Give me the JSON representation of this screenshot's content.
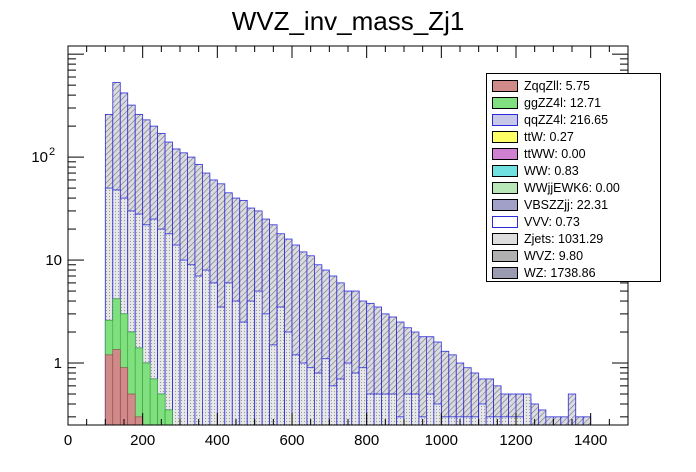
{
  "title": "WVZ_inv_mass_Zj1",
  "chart_data": {
    "type": "bar",
    "style": "stacked-histogram",
    "title": "WVZ_inv_mass_Zj1",
    "xlabel": "",
    "ylabel": "",
    "xlim": [
      0,
      1500
    ],
    "ylim": [
      0.25,
      1200
    ],
    "y_scale": "log",
    "x_ticks": [
      0,
      200,
      400,
      600,
      800,
      1000,
      1200,
      1400
    ],
    "x_tick_labels": [
      "0",
      "200",
      "400",
      "600",
      "800",
      "1000",
      "1200",
      "1400"
    ],
    "y_ticks": [
      1,
      10,
      100
    ],
    "y_tick_labels": [
      "1",
      "10",
      "10^2"
    ],
    "bin_width": 20,
    "bins_start": 100,
    "legend_position": "top-right",
    "series": [
      {
        "name": "ZqqZll",
        "legend": "ZqqZll: 5.75",
        "color": "#d08a8a",
        "values": [
          1.2,
          1.35,
          0.9,
          0.5,
          0.3
        ]
      },
      {
        "name": "ggZZ4l",
        "legend": "ggZZ4l: 12.71",
        "color": "#80e080",
        "values": [
          2.6,
          4.2,
          3.0,
          2.0,
          1.4,
          1.0,
          0.7,
          0.5,
          0.35
        ]
      },
      {
        "name": "qqZZ4l",
        "legend": "qqZZ4l: 216.65",
        "color": "#2b2bd9",
        "values": [
          2.6,
          4.2,
          3.0,
          2.0,
          1.4,
          1.0,
          0.7,
          0.5,
          0.35
        ]
      },
      {
        "name": "ttW",
        "legend": "ttW: 0.27",
        "color": "#ffff66"
      },
      {
        "name": "ttWW",
        "legend": "ttWW: 0.00",
        "color": "#d080d0"
      },
      {
        "name": "WW",
        "legend": "WW: 0.83",
        "color": "#70e0e0"
      },
      {
        "name": "WWjjEWK6",
        "legend": "WWjjEWK6: 0.00",
        "color": "#b8e8b8"
      },
      {
        "name": "VBSZZjj",
        "legend": "VBSZZjj: 22.31",
        "color": "#a0a0c8"
      },
      {
        "name": "VVV",
        "legend": "VVV: 0.73",
        "color": "#ffffff"
      },
      {
        "name": "Zjets",
        "legend": "Zjets: 1031.29",
        "color": "#dddddd",
        "values": [
          50,
          48,
          40,
          30,
          28,
          22,
          25,
          20,
          18,
          14,
          10,
          9,
          7,
          8,
          6,
          3.5,
          6,
          4,
          2.5,
          4,
          5,
          3,
          1.5,
          3.5,
          2,
          1.2,
          1,
          0.9,
          0.8,
          1.1,
          0.6,
          0.7,
          1,
          0.8,
          0.9,
          0.5,
          0.5,
          0.5,
          0.5,
          0.3,
          0.5,
          0.5,
          0.3,
          0.5,
          0.4,
          0.3,
          0.3,
          0.3,
          0.3,
          0.3,
          0.4,
          0.3,
          0.3,
          0.3,
          0.3,
          0.3,
          0.5
        ]
      },
      {
        "name": "WVZ",
        "legend": "WVZ: 9.80",
        "color": "#b0b0b0"
      },
      {
        "name": "WZ",
        "legend": "WZ: 1738.86",
        "color": "#9a9ab0"
      }
    ],
    "total": [
      260,
      530,
      420,
      320,
      260,
      230,
      200,
      170,
      140,
      120,
      110,
      100,
      85,
      70,
      60,
      55,
      45,
      40,
      38,
      32,
      30,
      25,
      22,
      18,
      16,
      14,
      12,
      11,
      9,
      8,
      7,
      6,
      5,
      5,
      4,
      3.8,
      3.5,
      3,
      2.8,
      2.5,
      2.2,
      2,
      1.8,
      1.8,
      1.6,
      1.3,
      1.2,
      1,
      0.9,
      0.8,
      0.7,
      0.7,
      0.6,
      0.5,
      0.5,
      0.5,
      0.45,
      0.4,
      0.35,
      0.3,
      0.3,
      0.3,
      0.5,
      0.3,
      0.3
    ]
  }
}
